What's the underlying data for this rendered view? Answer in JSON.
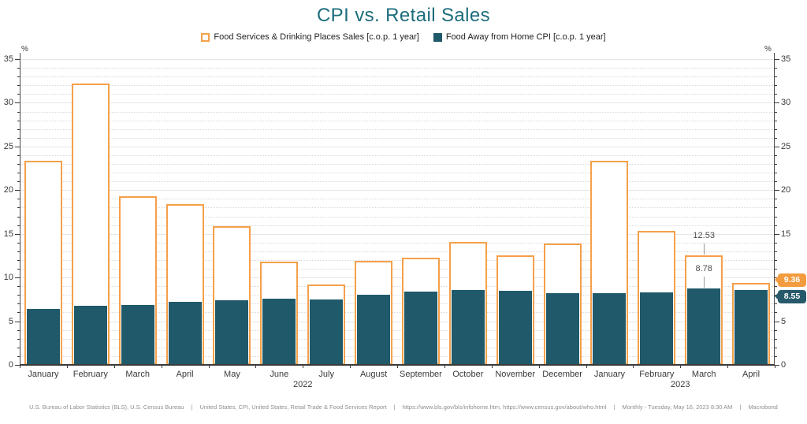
{
  "title": "CPI vs. Retail Sales",
  "axes": {
    "unit": "%",
    "ymin": 0,
    "ymax": 35,
    "tick_step_minor": 1,
    "tick_step_major": 5
  },
  "legend": {
    "items": [
      {
        "label": "Food Services & Drinking Places Sales [c.o.p. 1 year]",
        "color": "#F5A04A",
        "swatch": "outline"
      },
      {
        "label": "Food Away from Home CPI [c.o.p. 1 year]",
        "color": "#20596A",
        "swatch": "filled"
      }
    ]
  },
  "chart_data": {
    "type": "bar",
    "title": "CPI vs. Retail Sales",
    "ylabel": "%",
    "ylim": [
      0,
      35
    ],
    "grid": "horizontal: minor dotted every 1, major solid every 5",
    "legend_position": "top",
    "categories": [
      "January",
      "February",
      "March",
      "April",
      "May",
      "June",
      "July",
      "August",
      "September",
      "October",
      "November",
      "December",
      "January",
      "February",
      "March",
      "April"
    ],
    "year_groups": [
      {
        "label": "2022",
        "start_index": 0,
        "end_index": 11
      },
      {
        "label": "2023",
        "start_index": 12,
        "end_index": 15
      }
    ],
    "series": [
      {
        "name": "Food Services & Drinking Places Sales [c.o.p. 1 year]",
        "style": "outline",
        "color": "#F5A04A",
        "values": [
          23.4,
          32.2,
          19.3,
          18.4,
          15.9,
          11.8,
          9.2,
          11.9,
          12.3,
          14.1,
          12.5,
          13.9,
          23.4,
          15.3,
          12.53,
          9.36
        ]
      },
      {
        "name": "Food Away from Home CPI [c.o.p. 1 year]",
        "style": "filled",
        "color": "#20596A",
        "values": [
          6.4,
          6.8,
          6.9,
          7.2,
          7.4,
          7.6,
          7.5,
          8.0,
          8.4,
          8.6,
          8.5,
          8.2,
          8.2,
          8.3,
          8.78,
          8.55
        ]
      }
    ],
    "annotations": [
      {
        "category_index": 14,
        "series_index": 0,
        "text": "12.53"
      },
      {
        "category_index": 14,
        "series_index": 1,
        "text": "8.78"
      }
    ],
    "end_value_badges": [
      {
        "series_index": 0,
        "text": "9.36",
        "color": "#F39C3F"
      },
      {
        "series_index": 1,
        "text": "8.55",
        "color": "#27596B"
      }
    ]
  },
  "footer": {
    "segments": [
      "U.S. Bureau of Labor Statistics (BLS), U.S. Census Bureau",
      "United States, CPI, United States, Retail Trade & Food Services Report",
      "https://www.bls.gov/bls/infohome.htm, https://www.census.gov/about/who.html",
      "Monthly - Tuesday, May 16, 2023 8:30 AM",
      "Macrobond"
    ],
    "separator": "|"
  }
}
